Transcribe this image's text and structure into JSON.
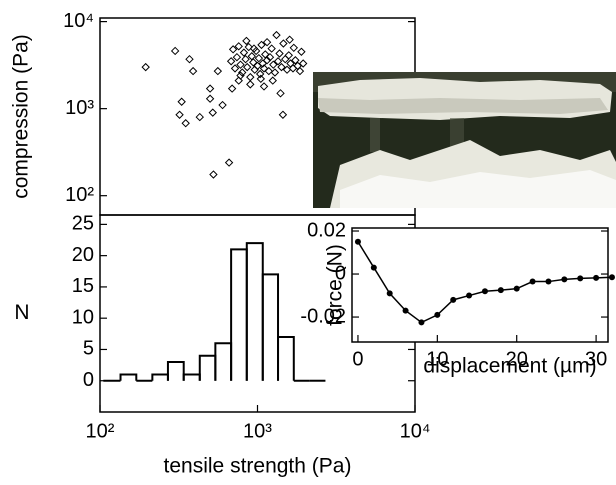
{
  "chart_data": [
    {
      "type": "scatter",
      "ylabel": "compression (Pa)",
      "xscale": "log",
      "yscale": "log",
      "xlim": [
        100,
        10000
      ],
      "ylim": [
        60,
        11000
      ],
      "yticks": [
        {
          "value": 100,
          "label": "10²"
        },
        {
          "value": 1000,
          "label": "10³"
        },
        {
          "value": 10000,
          "label": "10⁴"
        }
      ],
      "color": "#000000",
      "marker": "diamond",
      "x": [
        195,
        300,
        370,
        390,
        330,
        350,
        320,
        430,
        500,
        500,
        520,
        525,
        660,
        560,
        600,
        680,
        700,
        720,
        740,
        760,
        780,
        800,
        820,
        840,
        860,
        880,
        900,
        920,
        940,
        960,
        980,
        1000,
        1020,
        1040,
        1060,
        1080,
        1100,
        1120,
        1150,
        1180,
        1200,
        1230,
        1260,
        1290,
        1320,
        1350,
        1380,
        1420,
        1460,
        1500,
        1540,
        1580,
        1620,
        1680,
        1740,
        1800,
        1860,
        1900,
        1700,
        1400,
        1450,
        1100,
        900,
        760,
        690,
        1950,
        1600,
        850,
        1250,
        950,
        1150,
        780,
        1050
      ],
      "values": [
        3000,
        4600,
        3700,
        2700,
        1200,
        680,
        850,
        800,
        1300,
        1700,
        900,
        175,
        240,
        2700,
        1100,
        3500,
        4800,
        2900,
        3900,
        5200,
        3200,
        2600,
        4400,
        3700,
        3000,
        5100,
        2300,
        4000,
        3400,
        2800,
        4600,
        3100,
        3800,
        2500,
        5400,
        3300,
        2900,
        4200,
        3600,
        2700,
        3900,
        4900,
        3200,
        2600,
        7000,
        3500,
        4300,
        3000,
        5600,
        3700,
        2800,
        4100,
        3300,
        2900,
        3600,
        3100,
        2700,
        4500,
        5000,
        1500,
        850,
        1800,
        1900,
        2100,
        1700,
        3300,
        6200,
        6000,
        2100,
        4900,
        5800,
        2400,
        2200
      ]
    },
    {
      "type": "histogram",
      "xlabel": "tensile strength (Pa)",
      "ylabel": "N",
      "xscale": "log",
      "xlim": [
        100,
        10000
      ],
      "ylim": [
        -5,
        26.5
      ],
      "xticks": [
        {
          "value": 100,
          "label": "10²"
        },
        {
          "value": 1000,
          "label": "10³"
        },
        {
          "value": 10000,
          "label": "10⁴"
        }
      ],
      "yticks": [
        0,
        5,
        10,
        15,
        20,
        25
      ],
      "color": "#000000",
      "bins": [
        105,
        135,
        170,
        215,
        270,
        340,
        430,
        540,
        680,
        855,
        1080,
        1350,
        1700,
        2150,
        2700
      ],
      "values": [
        0,
        1,
        0,
        1,
        3,
        1,
        4,
        6,
        21,
        22,
        17,
        7,
        0,
        0
      ]
    },
    {
      "type": "line",
      "xlabel": "displacement (µm)",
      "ylabel": "force (N)",
      "xlim": [
        -0.75,
        31.5
      ],
      "ylim": [
        -0.0316,
        0.0214
      ],
      "xticks": [
        0,
        10,
        20,
        30
      ],
      "yticks": [
        0.02,
        0,
        -0.02
      ],
      "color": "#000000",
      "x": [
        0,
        2,
        4,
        6,
        8,
        10,
        12,
        14,
        16,
        18,
        20,
        22,
        24,
        26,
        28,
        30,
        32
      ],
      "values": [
        0.015,
        0.003,
        -0.009,
        -0.017,
        -0.0225,
        -0.019,
        -0.012,
        -0.01,
        -0.008,
        -0.0075,
        -0.0068,
        -0.0035,
        -0.0035,
        -0.0025,
        -0.002,
        -0.0018,
        -0.0015
      ]
    }
  ]
}
